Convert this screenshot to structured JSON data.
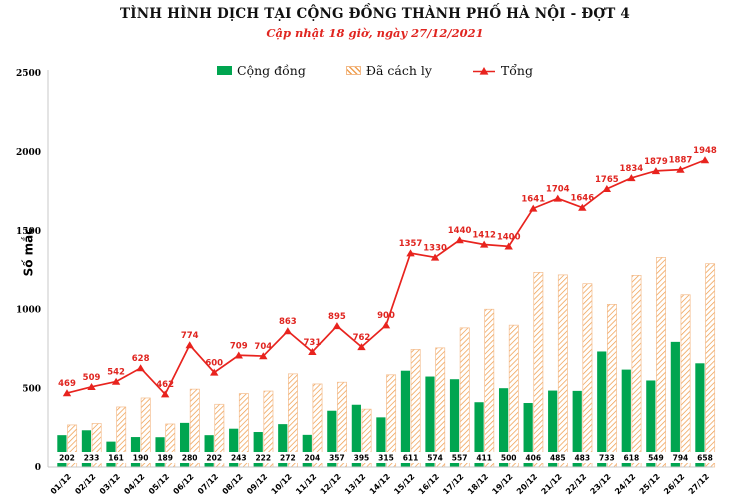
{
  "page": {
    "background": "#FFFFFF"
  },
  "chart_data": {
    "type": "bar",
    "combo": "grouped bars + line overlay",
    "title": "TÌNH HÌNH DỊCH TẠI CỘNG ĐỒNG THÀNH PHỐ HÀ NỘI - ĐỢT 4",
    "subtitle": "Cập nhật 18 giờ, ngày 27/12/2021",
    "ylabel": "Số mắc",
    "ylim": [
      0,
      2500
    ],
    "yticks": [
      0,
      500,
      1000,
      1500,
      2000,
      2500
    ],
    "grid": false,
    "legend_position": "top",
    "categories": [
      "01/12",
      "02/12",
      "03/12",
      "04/12",
      "05/12",
      "06/12",
      "07/12",
      "08/12",
      "09/12",
      "10/12",
      "11/12",
      "12/12",
      "13/12",
      "14/12",
      "15/12",
      "16/12",
      "17/12",
      "18/12",
      "19/12",
      "20/12",
      "21/12",
      "22/12",
      "23/12",
      "24/12",
      "25/12",
      "26/12",
      "27/12"
    ],
    "series": [
      {
        "name": "Cộng đồng",
        "type": "bar",
        "color": "#00A550",
        "data_labels": "at bar base in white boxes",
        "values": [
          202,
          233,
          161,
          190,
          189,
          280,
          202,
          243,
          222,
          272,
          204,
          357,
          395,
          315,
          611,
          574,
          557,
          411,
          500,
          406,
          485,
          483,
          733,
          618,
          549,
          794,
          658
        ]
      },
      {
        "name": "Đã cách ly",
        "type": "bar",
        "style": "diagonal orange hatch on white",
        "color": "#EF9F50",
        "values": [
          267,
          276,
          381,
          438,
          273,
          494,
          398,
          466,
          482,
          591,
          527,
          538,
          367,
          585,
          746,
          756,
          883,
          1001,
          900,
          1235,
          1219,
          1163,
          1032,
          1216,
          1330,
          1093,
          1290
        ]
      },
      {
        "name": "Tổng",
        "type": "line",
        "color": "#E8231E",
        "marker": "triangle-up",
        "data_labels": "above points in red",
        "values": [
          469,
          509,
          542,
          628,
          462,
          774,
          600,
          709,
          704,
          863,
          731,
          895,
          762,
          900,
          1357,
          1330,
          1440,
          1412,
          1400,
          1641,
          1704,
          1646,
          1765,
          1834,
          1879,
          1887,
          1948
        ]
      }
    ],
    "axis_color": "#C9C9C9"
  }
}
